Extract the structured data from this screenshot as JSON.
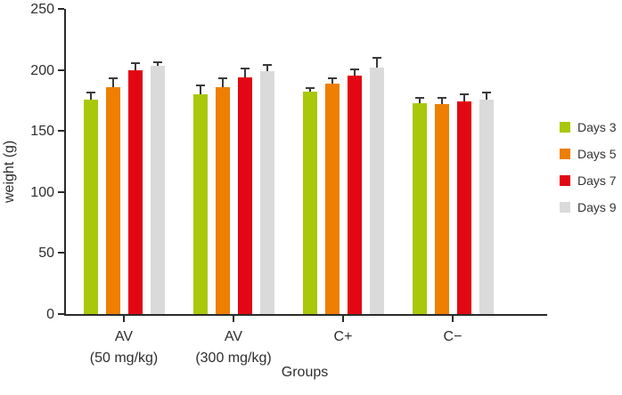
{
  "chart_data": {
    "type": "bar",
    "title": "",
    "xlabel": "Groups",
    "ylabel": "weight (g)",
    "ylim": [
      0,
      250
    ],
    "yticks": [
      0,
      50,
      100,
      150,
      200,
      250
    ],
    "grid": false,
    "legend_position": "right",
    "categories": [
      "AV (50 mg/kg)",
      "AV (300 mg/kg)",
      "C+",
      "C−"
    ],
    "category_label_lines": [
      [
        "AV",
        "(50 mg/kg)"
      ],
      [
        "AV",
        "(300 mg/kg)"
      ],
      [
        "C+"
      ],
      [
        "C−"
      ]
    ],
    "series": [
      {
        "name": "Days 3",
        "color": "#a9c80b",
        "values": [
          176,
          180,
          182,
          173
        ],
        "errors": [
          6,
          8,
          4,
          5
        ]
      },
      {
        "name": "Days 5",
        "color": "#ee7f00",
        "values": [
          186,
          186,
          189,
          172
        ],
        "errors": [
          8,
          8,
          5,
          6
        ]
      },
      {
        "name": "Days 7",
        "color": "#e30613",
        "values": [
          200,
          194,
          195,
          174
        ],
        "errors": [
          6,
          8,
          6,
          7
        ]
      },
      {
        "name": "Days 9",
        "color": "#dadada",
        "values": [
          203,
          199,
          202,
          176
        ],
        "errors": [
          4,
          6,
          9,
          6
        ]
      }
    ],
    "error_bar_color": "#3a3a3a",
    "axis_color": "#2b2b2b",
    "text_color": "#2e2e2e"
  }
}
